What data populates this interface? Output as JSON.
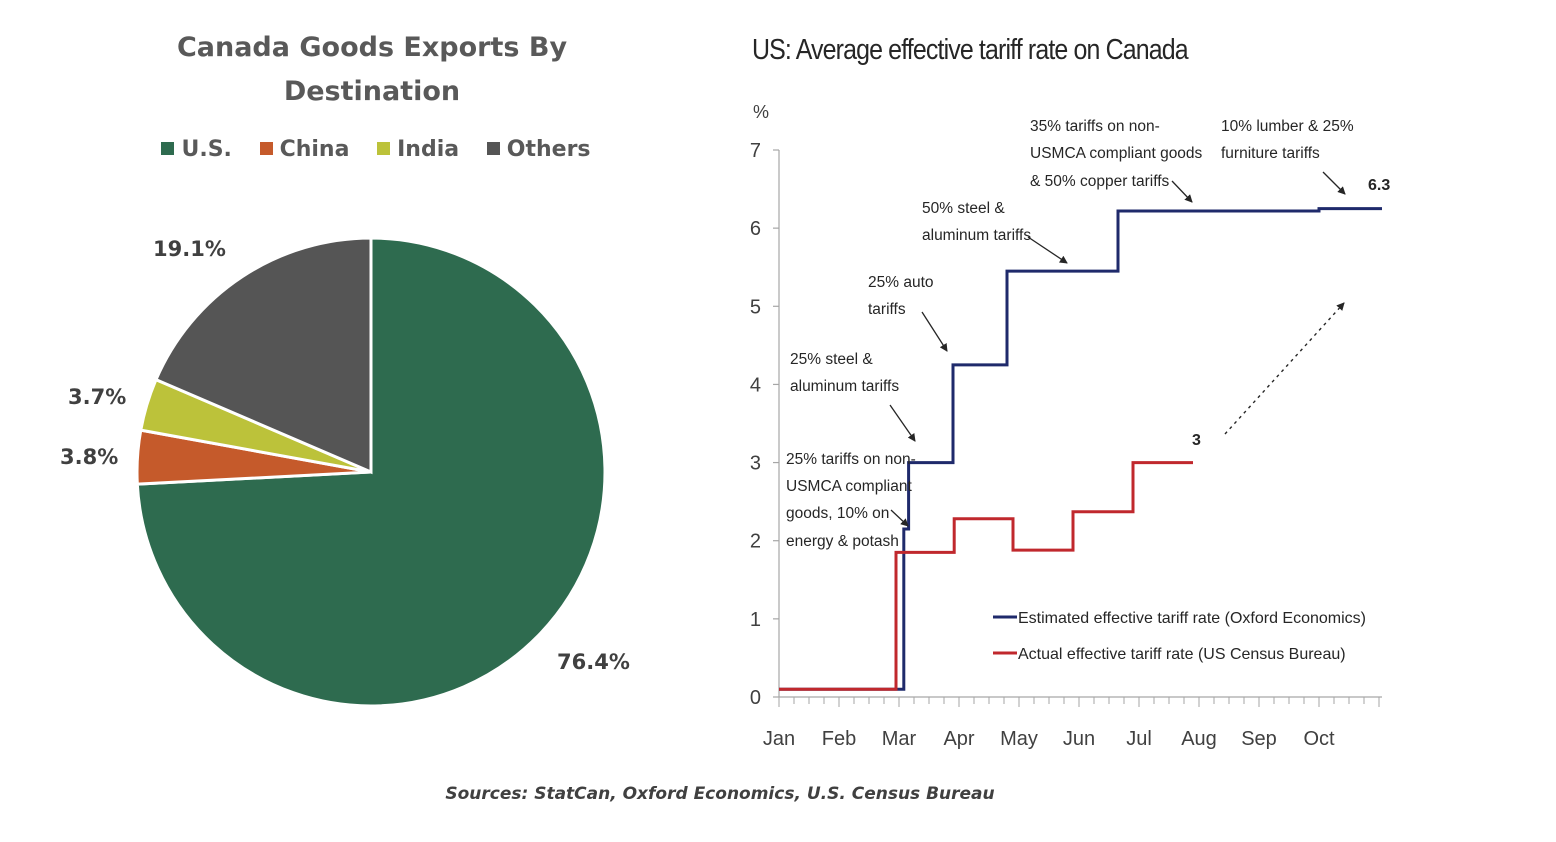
{
  "pie_chart": {
    "title": "Canada Goods Exports By Destination",
    "legend": [
      {
        "label": "U.S.",
        "color": "#2e6b4f"
      },
      {
        "label": "China",
        "color": "#c55a2b"
      },
      {
        "label": "India",
        "color": "#bcc23a"
      },
      {
        "label": "Others",
        "color": "#555555"
      }
    ],
    "labels": {
      "us": "76.4%",
      "china": "3.8%",
      "india": "3.7%",
      "others": "19.1%"
    }
  },
  "tariff_chart": {
    "title": "US: Average effective tariff rate on Canada",
    "y_unit": "%",
    "annotations": [
      {
        "id": "ann1",
        "lines": [
          "25% tariffs on non-",
          "USMCA compliant",
          "goods, 10% on",
          "energy & potash"
        ]
      },
      {
        "id": "ann2",
        "lines": [
          "25% steel &",
          "aluminum tariffs"
        ]
      },
      {
        "id": "ann3",
        "lines": [
          "25% auto",
          "tariffs"
        ]
      },
      {
        "id": "ann4",
        "lines": [
          "50% steel &",
          "aluminum tariffs"
        ]
      },
      {
        "id": "ann5",
        "lines": [
          "35% tariffs on non-",
          "USMCA compliant goods",
          "& 50% copper tariffs"
        ]
      },
      {
        "id": "ann6",
        "lines": [
          "10% lumber & 25%",
          "furniture tariffs"
        ]
      }
    ],
    "end_labels": {
      "estimated": "6.3",
      "actual": "3"
    }
  },
  "sources": "Sources: StatCan, Oxford Economics, U.S. Census Bureau",
  "chart_data": [
    {
      "type": "pie",
      "title": "Canada Goods Exports By Destination",
      "categories": [
        "U.S.",
        "China",
        "India",
        "Others"
      ],
      "values": [
        76.4,
        3.8,
        3.7,
        19.1
      ],
      "colors": [
        "#2e6b4f",
        "#c55a2b",
        "#bcc23a",
        "#555555"
      ],
      "legend": "top"
    },
    {
      "type": "line",
      "title": "US: Average effective tariff rate on Canada",
      "ylabel": "%",
      "ylim": [
        0,
        7
      ],
      "y_ticks": [
        0,
        1,
        2,
        3,
        4,
        5,
        6,
        7
      ],
      "x_ticks": [
        "Jan",
        "Feb",
        "Mar",
        "Apr",
        "May",
        "Jun",
        "Jul",
        "Aug",
        "Sep",
        "Oct"
      ],
      "xlim": [
        0,
        10.05
      ],
      "step": true,
      "grid": false,
      "legend": "bottom-right",
      "series": [
        {
          "name": "Estimated effective tariff rate (Oxford Economics)",
          "color": "#1f2a6b",
          "x": [
            0.0,
            2.08,
            2.08,
            2.16,
            2.16,
            2.9,
            2.9,
            3.8,
            3.8,
            5.65,
            5.65,
            9.0,
            9.0,
            10.05
          ],
          "y": [
            0.1,
            0.1,
            2.15,
            2.15,
            3.0,
            3.0,
            4.25,
            4.25,
            5.45,
            5.45,
            6.22,
            6.22,
            6.25,
            6.25
          ]
        },
        {
          "name": "Actual effective tariff rate (US Census Bureau)",
          "color": "#c0282d",
          "x": [
            0.0,
            1.95,
            1.95,
            2.92,
            2.92,
            3.9,
            3.9,
            4.9,
            4.9,
            5.9,
            5.9,
            6.9
          ],
          "y": [
            0.1,
            0.1,
            1.85,
            1.85,
            2.28,
            2.28,
            1.88,
            1.88,
            2.37,
            2.37,
            3.0,
            3.0
          ]
        }
      ],
      "annotations": [
        "25% tariffs on non-USMCA compliant goods, 10% on energy & potash",
        "25% steel & aluminum tariffs",
        "25% auto tariffs",
        "50% steel & aluminum tariffs",
        "35% tariffs on non-USMCA compliant goods & 50% copper tariffs",
        "10% lumber & 25% furniture tariffs"
      ],
      "data_labels": {
        "estimated_end": 6.3,
        "actual_end": 3
      }
    }
  ]
}
